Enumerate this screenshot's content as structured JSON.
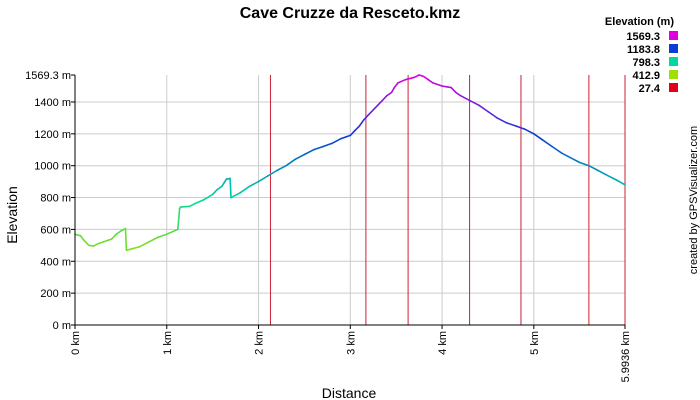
{
  "chart_data": {
    "type": "line",
    "title": "Cave Cruzze da Resceto.kmz",
    "xlabel": "Distance",
    "ylabel": "Elevation",
    "credit": "created by GPSVisualizer.com",
    "x_unit": "km",
    "y_unit": "m",
    "xlim": [
      0,
      5.9936
    ],
    "ylim": [
      0,
      1569.3
    ],
    "x_ticks": [
      {
        "value": 0,
        "label": "0 km"
      },
      {
        "value": 1,
        "label": "1 km"
      },
      {
        "value": 2,
        "label": "2 km"
      },
      {
        "value": 3,
        "label": "3 km"
      },
      {
        "value": 4,
        "label": "4 km"
      },
      {
        "value": 5,
        "label": "5 km"
      },
      {
        "value": 5.9936,
        "label": "5.9936 km"
      }
    ],
    "y_ticks": [
      {
        "value": 0,
        "label": "0 m"
      },
      {
        "value": 200,
        "label": "200 m"
      },
      {
        "value": 400,
        "label": "400 m"
      },
      {
        "value": 600,
        "label": "600 m"
      },
      {
        "value": 800,
        "label": "800 m"
      },
      {
        "value": 1000,
        "label": "1000 m"
      },
      {
        "value": 1200,
        "label": "1200 m"
      },
      {
        "value": 1400,
        "label": "1400 m"
      },
      {
        "value": 1569.3,
        "label": "1569.3 m"
      }
    ],
    "segment_markers_km": [
      2.13,
      3.17,
      3.63,
      4.3,
      4.86,
      5.6
    ],
    "legend": {
      "title": "Elevation (m)",
      "placement": "top-right",
      "entries": [
        {
          "label": "1569.3",
          "color": "#e000e0"
        },
        {
          "label": "1183.8",
          "color": "#0a3cd8"
        },
        {
          "label": "798.3",
          "color": "#00d8a0"
        },
        {
          "label": "412.9",
          "color": "#a0e000"
        },
        {
          "label": "27.4",
          "color": "#e0001c"
        }
      ]
    },
    "series": [
      {
        "x": [
          0,
          0.06,
          0.1,
          0.15,
          0.2,
          0.25,
          0.3,
          0.35,
          0.4,
          0.45,
          0.5,
          0.55,
          0.56,
          0.57,
          0.6,
          0.7,
          0.8,
          0.9,
          1.0,
          1.12,
          1.14,
          1.15,
          1.25,
          1.3,
          1.4,
          1.5,
          1.55,
          1.6,
          1.65,
          1.69,
          1.7,
          1.8,
          1.9,
          2.0,
          2.1,
          2.2,
          2.3,
          2.4,
          2.5,
          2.6,
          2.7,
          2.8,
          2.9,
          2.95,
          3.0,
          3.05,
          3.1,
          3.15,
          3.2,
          3.3,
          3.35,
          3.4,
          3.45,
          3.48,
          3.52,
          3.6,
          3.7,
          3.75,
          3.8,
          3.85,
          3.9,
          4.0,
          4.05,
          4.1,
          4.15,
          4.2,
          4.3,
          4.4,
          4.5,
          4.6,
          4.7,
          4.8,
          4.9,
          5.0,
          5.1,
          5.2,
          5.3,
          5.4,
          5.5,
          5.6,
          5.7,
          5.8,
          5.9,
          5.9936
        ],
        "y": [
          570,
          560,
          530,
          500,
          495,
          510,
          520,
          530,
          540,
          570,
          590,
          605,
          470,
          470,
          475,
          490,
          520,
          550,
          570,
          600,
          730,
          740,
          745,
          760,
          785,
          820,
          850,
          870,
          915,
          920,
          800,
          830,
          870,
          900,
          935,
          970,
          1000,
          1040,
          1070,
          1100,
          1120,
          1140,
          1170,
          1180,
          1190,
          1220,
          1250,
          1290,
          1320,
          1380,
          1410,
          1440,
          1460,
          1490,
          1520,
          1540,
          1555,
          1569.3,
          1560,
          1540,
          1520,
          1500,
          1495,
          1490,
          1460,
          1440,
          1410,
          1380,
          1340,
          1300,
          1270,
          1250,
          1230,
          1200,
          1160,
          1120,
          1080,
          1050,
          1020,
          1000,
          970,
          940,
          910,
          880
        ]
      }
    ]
  }
}
